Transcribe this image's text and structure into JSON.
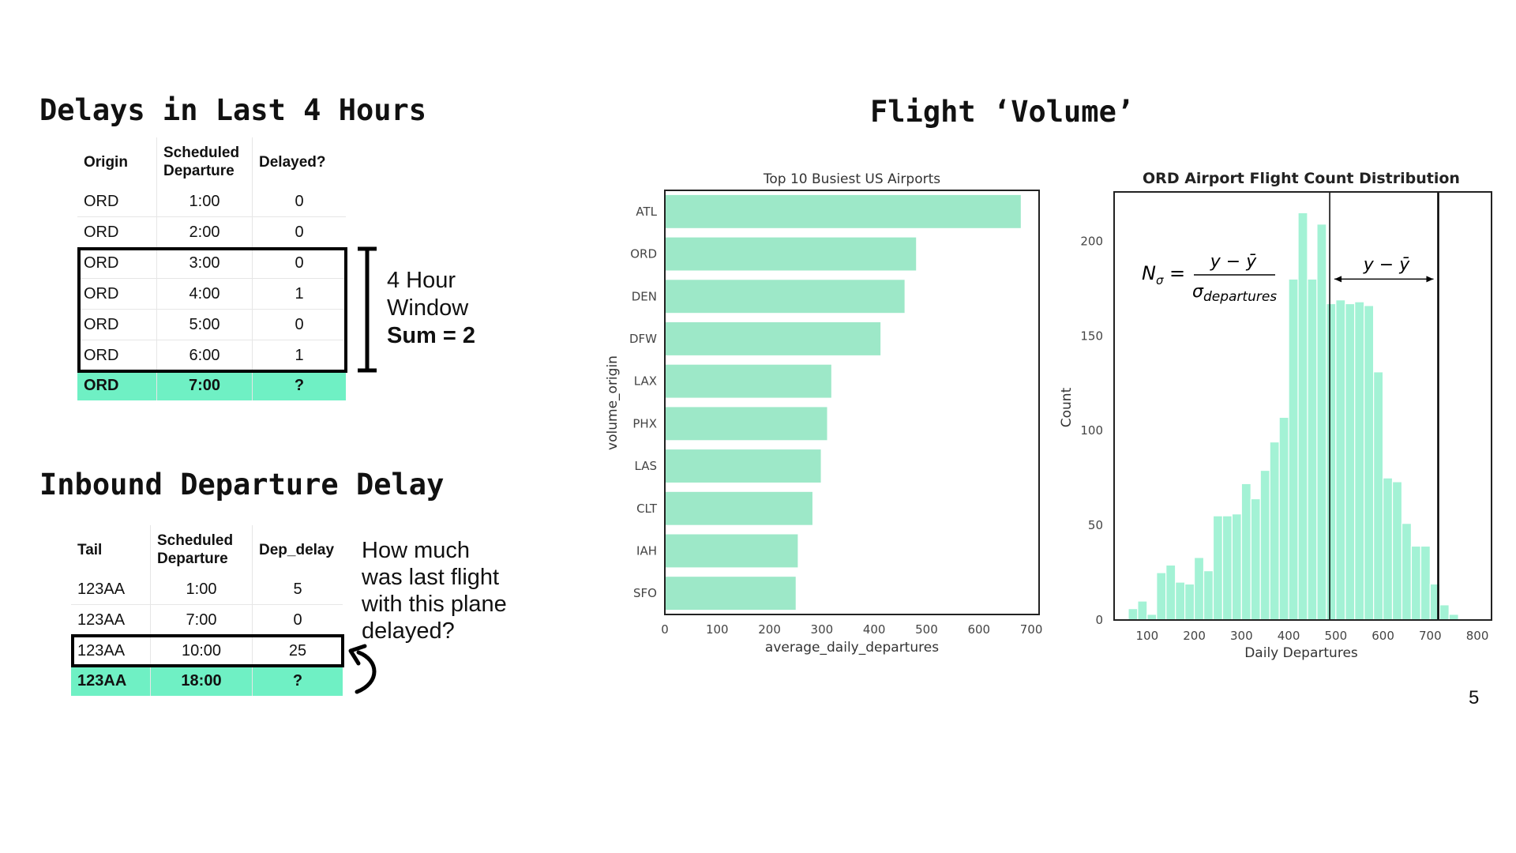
{
  "colors": {
    "bar": "#9de8c8",
    "highlight": "#6ff0c4",
    "hist": "#a3f2d5"
  },
  "delays": {
    "title": "Delays in Last 4 Hours",
    "headers": {
      "origin": "Origin",
      "sched_1": "Scheduled",
      "sched_2": "Departure",
      "delayed": "Delayed?"
    },
    "rows": [
      {
        "origin": "ORD",
        "time": "1:00",
        "delayed": "0"
      },
      {
        "origin": "ORD",
        "time": "2:00",
        "delayed": "0"
      },
      {
        "origin": "ORD",
        "time": "3:00",
        "delayed": "0"
      },
      {
        "origin": "ORD",
        "time": "4:00",
        "delayed": "1"
      },
      {
        "origin": "ORD",
        "time": "5:00",
        "delayed": "0"
      },
      {
        "origin": "ORD",
        "time": "6:00",
        "delayed": "1"
      }
    ],
    "target": {
      "origin": "ORD",
      "time": "7:00",
      "delayed": "?"
    },
    "window_line1": "4 Hour",
    "window_line2": "Window",
    "window_sum": "Sum = 2"
  },
  "inbound": {
    "title": "Inbound Departure Delay",
    "headers": {
      "tail": "Tail",
      "sched_1": "Scheduled",
      "sched_2": "Departure",
      "dep_delay": "Dep_delay"
    },
    "rows": [
      {
        "tail": "123AA",
        "time": "1:00",
        "delay": "5"
      },
      {
        "tail": "123AA",
        "time": "7:00",
        "delay": "0"
      },
      {
        "tail": "123AA",
        "time": "10:00",
        "delay": "25"
      }
    ],
    "target": {
      "tail": "123AA",
      "time": "18:00",
      "delay": "?"
    },
    "question": [
      "How much",
      "was last flight",
      "with this plane",
      "delayed?"
    ]
  },
  "volume_title": "Flight ‘Volume’",
  "page_number": "5",
  "chart_data": [
    {
      "type": "bar",
      "orientation": "horizontal",
      "title": "Top 10 Busiest US Airports",
      "categories": [
        "ATL",
        "ORD",
        "DEN",
        "DFW",
        "LAX",
        "PHX",
        "LAS",
        "CLT",
        "IAH",
        "SFO"
      ],
      "values": [
        680,
        480,
        458,
        412,
        318,
        310,
        298,
        282,
        254,
        250
      ],
      "xlabel": "average_daily_departures",
      "ylabel": "volume_origin",
      "xlim": [
        0,
        715
      ],
      "xticks": [
        0,
        100,
        200,
        300,
        400,
        500,
        600,
        700
      ]
    },
    {
      "type": "bar",
      "subtype": "histogram",
      "title": "ORD Airport Flight Count Distribution",
      "xlabel": "Daily Departures",
      "ylabel": "Count",
      "xlim": [
        30,
        830
      ],
      "ylim": [
        0,
        226
      ],
      "xticks": [
        100,
        200,
        300,
        400,
        500,
        600,
        700,
        800
      ],
      "yticks": [
        0,
        50,
        100,
        150,
        200
      ],
      "bin_start": 60,
      "bin_width": 20,
      "counts": [
        6,
        10,
        3,
        25,
        29,
        20,
        19,
        33,
        26,
        55,
        55,
        56,
        72,
        64,
        79,
        94,
        107,
        180,
        215,
        180,
        209,
        167,
        169,
        167,
        168,
        166,
        131,
        75,
        73,
        51,
        39,
        39,
        19,
        8,
        3
      ],
      "mean_line": 487,
      "value_line": 717,
      "formula_lhs": "N",
      "formula_lhs_sub": "σ",
      "formula_eq": "=",
      "formula_num": "y − ȳ",
      "formula_den": "σ",
      "formula_den_sub": "departures",
      "arrow_label": "y − ȳ"
    }
  ]
}
